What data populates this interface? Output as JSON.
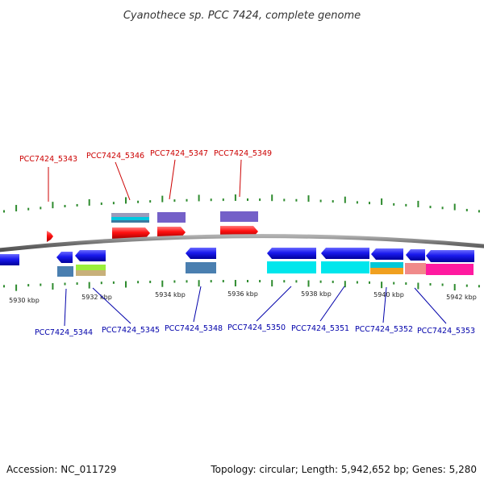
{
  "title": "Cyanothece sp. PCC 7424, complete genome",
  "footer": {
    "accession": "Accession: NC_011729",
    "stats": "Topology: circular; Length: 5,942,652 bp; Genes: 5,280"
  },
  "colors": {
    "backbone": "#808080",
    "tick": "#2e8b2e",
    "forward_gene": "#ff0000",
    "reverse_gene": "#0000ee",
    "forward_label": "#cc0000",
    "reverse_label": "#0000aa"
  },
  "kbp_labels": [
    "5930 kbp",
    "5932 kbp",
    "5934 kbp",
    "5936 kbp",
    "5938 kbp",
    "5940 kbp",
    "5942 kbp"
  ],
  "forward_genes": [
    "PCC7424_5343",
    "PCC7424_5346",
    "PCC7424_5347",
    "PCC7424_5349"
  ],
  "reverse_genes": [
    "PCC7424_5344",
    "PCC7424_5345",
    "PCC7424_5348",
    "PCC7424_5350",
    "PCC7424_5351",
    "PCC7424_5352",
    "PCC7424_5353"
  ]
}
